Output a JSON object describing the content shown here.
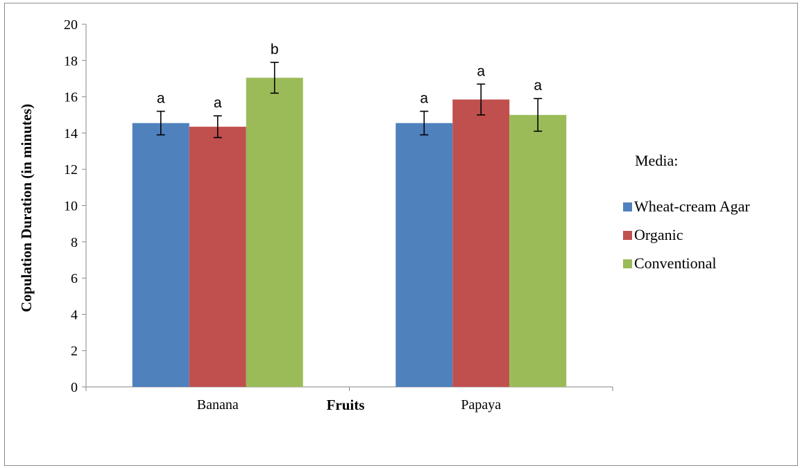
{
  "chart_data": {
    "type": "bar",
    "title": "",
    "xlabel": "Fruits",
    "ylabel": "Copulation Duration  (in minutes)",
    "ylim": [
      0,
      20
    ],
    "yticks": [
      "0",
      "2",
      "4",
      "6",
      "8",
      "10",
      "12",
      "14",
      "16",
      "18",
      "20"
    ],
    "grid": false,
    "categories": [
      "Banana",
      "Papaya"
    ],
    "legend": {
      "title": "Media:",
      "placement": "right"
    },
    "series": [
      {
        "name": "Wheat-cream Agar",
        "color": "#4f81bd",
        "values": [
          14.55,
          14.55
        ],
        "errors": [
          0.65,
          0.65
        ],
        "labels": [
          "a",
          "a"
        ]
      },
      {
        "name": "Organic",
        "color": "#c0504d",
        "values": [
          14.35,
          15.85
        ],
        "errors": [
          0.6,
          0.85
        ],
        "labels": [
          "a",
          "a"
        ]
      },
      {
        "name": "Conventional",
        "color": "#9bbb59",
        "values": [
          17.05,
          15.0
        ],
        "errors": [
          0.85,
          0.9
        ],
        "labels": [
          "b",
          "a"
        ]
      }
    ]
  }
}
